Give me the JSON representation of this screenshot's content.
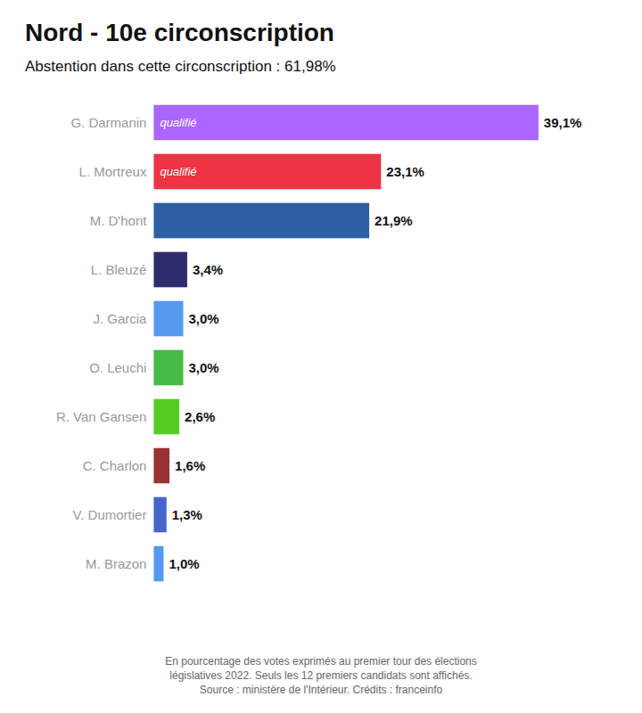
{
  "chart_data": {
    "type": "bar",
    "orientation": "horizontal",
    "title": "Nord - 10e circonscription",
    "subtitle": "Abstention dans cette circonscription : 61,98%",
    "footnote": "En pourcentage des votes exprimés au premier tour des élections\nlégislatives 2022. Seuls les 12 premiers candidats sont affichés.\nSource : ministère de l'Intérieur. Crédits : franceinfo",
    "categories": [
      "G. Darmanin",
      "L. Mortreux",
      "M. D'hont",
      "L. Bleuzé",
      "J. Garcia",
      "O. Leuchi",
      "R. Van Gansen",
      "C. Charlon",
      "V. Dumortier",
      "M. Brazon"
    ],
    "values": [
      39.1,
      23.1,
      21.9,
      3.4,
      3.0,
      3.0,
      2.6,
      1.6,
      1.3,
      1.0
    ],
    "value_labels": [
      "39,1%",
      "23,1%",
      "21,9%",
      "3,4%",
      "3,0%",
      "3,0%",
      "2,6%",
      "1,6%",
      "1,3%",
      "1,0%"
    ],
    "colors": [
      "#aa66ff",
      "#ee3344",
      "#2e5fa3",
      "#2d2d6b",
      "#5599ee",
      "#44bb44",
      "#55cc22",
      "#993333",
      "#4466cc",
      "#5599ee"
    ],
    "annotations": [
      {
        "text": "qualifié",
        "category": "G. Darmanin"
      },
      {
        "text": "qualifié",
        "category": "L. Mortreux"
      }
    ],
    "xlim": [
      -12,
      46
    ],
    "data_labels": true,
    "tick_labels": false,
    "grid": false
  }
}
